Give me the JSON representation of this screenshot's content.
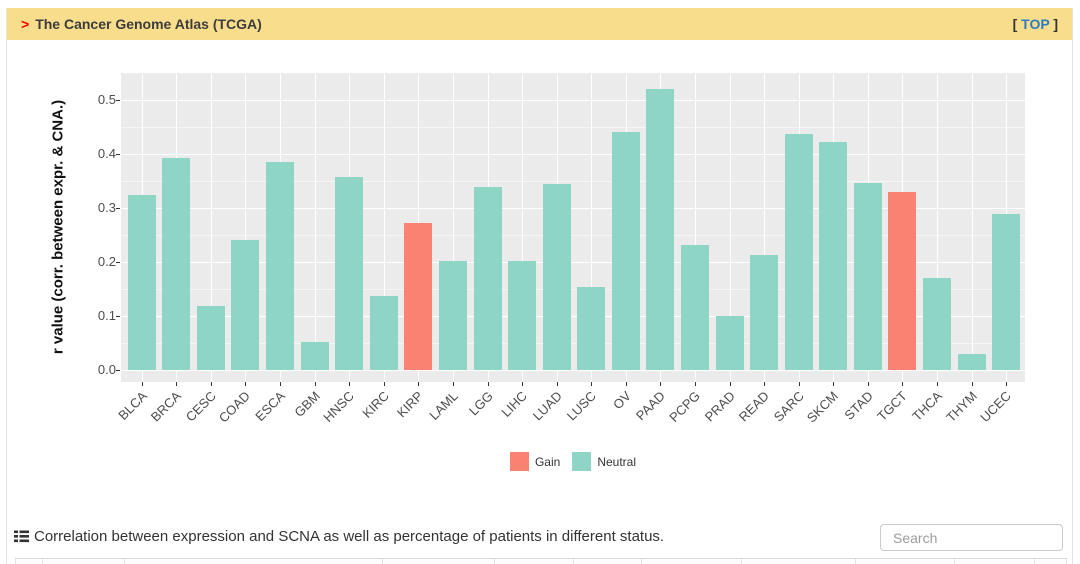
{
  "header": {
    "arrow": ">",
    "title": "The Cancer Genome Atlas (TCGA)",
    "top_open": "[ ",
    "top_label": "TOP",
    "top_close": " ]"
  },
  "chart_data": {
    "type": "bar",
    "title": "",
    "xlabel": "",
    "ylabel": "r value (corr. between expr. & CNA.)",
    "categories": [
      "BLCA",
      "BRCA",
      "CESC",
      "COAD",
      "ESCA",
      "GBM",
      "HNSC",
      "KIRC",
      "KIRP",
      "LAML",
      "LGG",
      "LIHC",
      "LUAD",
      "LUSC",
      "OV",
      "PAAD",
      "PCPG",
      "PRAD",
      "READ",
      "SARC",
      "SKCM",
      "STAD",
      "TGCT",
      "THCA",
      "THYM",
      "UCEC"
    ],
    "values": [
      0.325,
      0.392,
      0.119,
      0.241,
      0.386,
      0.051,
      0.357,
      0.137,
      0.273,
      0.201,
      0.339,
      0.202,
      0.344,
      0.154,
      0.44,
      0.52,
      0.231,
      0.1,
      0.213,
      0.437,
      0.422,
      0.347,
      0.329,
      0.17,
      0.029,
      0.289
    ],
    "status": [
      "Neutral",
      "Neutral",
      "Neutral",
      "Neutral",
      "Neutral",
      "Neutral",
      "Neutral",
      "Neutral",
      "Gain",
      "Neutral",
      "Neutral",
      "Neutral",
      "Neutral",
      "Neutral",
      "Neutral",
      "Neutral",
      "Neutral",
      "Neutral",
      "Neutral",
      "Neutral",
      "Neutral",
      "Neutral",
      "Gain",
      "Neutral",
      "Neutral",
      "Neutral"
    ],
    "yticks": [
      "0.0",
      "0.1",
      "0.2",
      "0.3",
      "0.4",
      "0.5"
    ],
    "ylim": [
      0,
      0.55
    ],
    "grid": true,
    "legend_position": "bottom",
    "legend": [
      {
        "label": "Gain",
        "color": "#fa8272"
      },
      {
        "label": "Neutral",
        "color": "#8ed5c6"
      }
    ],
    "colors": {
      "Gain": "#fa8272",
      "Neutral": "#8ed5c6",
      "panel_bg": "#ebebeb"
    }
  },
  "caption": {
    "icon": "table-list-icon",
    "text": "Correlation between expression and SCNA as well as percentage of patients in different status."
  },
  "search": {
    "placeholder": "Search"
  }
}
